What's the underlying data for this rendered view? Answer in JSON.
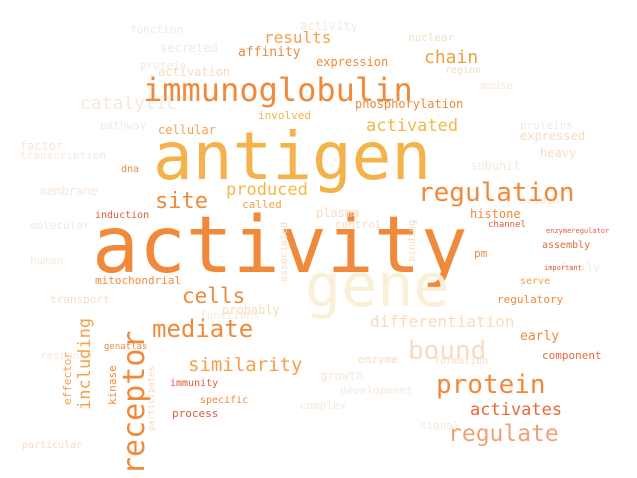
{
  "colors": {
    "background": "#ffffff",
    "orange_main": "#f5a04a",
    "orange_deep": "#f08a3a",
    "orange_bright": "#f4b24a",
    "gold": "#f2b847",
    "amber": "#e8a33f",
    "red_orange": "#e7693a",
    "red": "#e05a3a",
    "salmon": "#f0a07a",
    "pale_peach": "#f8dcc0",
    "pale_cream": "#faf0d8",
    "faint": "#f7e8dc"
  },
  "words": [
    {
      "text": "activity",
      "color": "orange_deep"
    },
    {
      "text": "antigen",
      "color": "orange_bright"
    },
    {
      "text": "gene",
      "color": "pale_cream"
    },
    {
      "text": "immunoglobulin",
      "color": "orange_deep"
    },
    {
      "text": "receptor",
      "color": "orange_deep"
    },
    {
      "text": "regulation",
      "color": "orange_deep"
    },
    {
      "text": "protein",
      "color": "orange_deep"
    },
    {
      "text": "bound",
      "color": "pale_peach"
    },
    {
      "text": "regulate",
      "color": "salmon"
    },
    {
      "text": "mediate",
      "color": "orange_deep"
    },
    {
      "text": "cells",
      "color": "orange_deep"
    },
    {
      "text": "site",
      "color": "orange_deep"
    },
    {
      "text": "produced",
      "color": "gold"
    },
    {
      "text": "similarity",
      "color": "orange_main"
    },
    {
      "text": "activates",
      "color": "red_orange"
    },
    {
      "text": "results",
      "color": "orange_main"
    },
    {
      "text": "chain",
      "color": "amber"
    },
    {
      "text": "activated",
      "color": "gold"
    },
    {
      "text": "differentiation",
      "color": "pale_peach"
    },
    {
      "text": "including",
      "color": "orange_main"
    },
    {
      "text": "affinity",
      "color": "orange_deep"
    },
    {
      "text": "expression",
      "color": "orange_deep"
    },
    {
      "text": "activation",
      "color": "pale_peach"
    },
    {
      "text": "phosphorylation",
      "color": "orange_deep"
    },
    {
      "text": "involved",
      "color": "gold"
    },
    {
      "text": "cellular",
      "color": "orange_main"
    },
    {
      "text": "histone",
      "color": "orange_deep"
    },
    {
      "text": "called",
      "color": "orange_main"
    },
    {
      "text": "plasma",
      "color": "pale_peach"
    },
    {
      "text": "control",
      "color": "pale_peach"
    },
    {
      "text": "induction",
      "color": "red"
    },
    {
      "text": "mitochondrial",
      "color": "orange_deep"
    },
    {
      "text": "probably",
      "color": "pale_peach"
    },
    {
      "text": "transport",
      "color": "pale_peach"
    },
    {
      "text": "regulatory",
      "color": "orange_deep"
    },
    {
      "text": "early",
      "color": "orange_deep"
    },
    {
      "text": "component",
      "color": "red_orange"
    },
    {
      "text": "serve",
      "color": "orange_main"
    },
    {
      "text": "assembly",
      "color": "red_orange"
    },
    {
      "text": "kinase",
      "color": "orange_deep"
    },
    {
      "text": "immunity",
      "color": "red"
    },
    {
      "text": "process",
      "color": "red"
    },
    {
      "text": "specific",
      "color": "orange_deep"
    },
    {
      "text": "effector",
      "color": "orange_main"
    },
    {
      "text": "enzyme",
      "color": "pale_peach"
    },
    {
      "text": "nuclear",
      "color": "pale_peach"
    },
    {
      "text": "region",
      "color": "pale_peach"
    },
    {
      "text": "expressed",
      "color": "pale_peach"
    },
    {
      "text": "heavy",
      "color": "pale_peach"
    },
    {
      "text": "dna",
      "color": "orange_deep"
    },
    {
      "text": "binding",
      "color": "pale_peach"
    },
    {
      "text": "pm",
      "color": "orange_deep"
    },
    {
      "text": "associated",
      "color": "pale_peach"
    },
    {
      "text": "channel",
      "color": "red"
    },
    {
      "text": "formation",
      "color": "pale_peach"
    },
    {
      "text": "participates",
      "color": "pale_peach"
    },
    {
      "text": "particular",
      "color": "pale_peach"
    },
    {
      "text": "important",
      "color": "red"
    },
    {
      "text": "enzymeregulator",
      "color": "red"
    },
    {
      "text": "genatlas",
      "color": "orange_deep"
    },
    {
      "text": "protein",
      "color": "faint"
    },
    {
      "text": "activity",
      "color": "faint"
    },
    {
      "text": "catalytic",
      "color": "faint"
    },
    {
      "text": "secreted",
      "color": "faint"
    },
    {
      "text": "function",
      "color": "faint"
    },
    {
      "text": "factor",
      "color": "faint"
    },
    {
      "text": "subunit",
      "color": "faint"
    },
    {
      "text": "molecular",
      "color": "faint"
    },
    {
      "text": "pathway",
      "color": "faint"
    },
    {
      "text": "proteins",
      "color": "faint"
    },
    {
      "text": "functions",
      "color": "faint"
    },
    {
      "text": "growth",
      "color": "faint"
    },
    {
      "text": "complex",
      "color": "faint"
    },
    {
      "text": "membrane",
      "color": "faint"
    },
    {
      "text": "domain",
      "color": "faint"
    },
    {
      "text": "human",
      "color": "faint"
    },
    {
      "text": "family",
      "color": "faint"
    },
    {
      "text": "response",
      "color": "faint"
    },
    {
      "text": "signal",
      "color": "faint"
    },
    {
      "text": "transcription",
      "color": "faint"
    },
    {
      "text": "development",
      "color": "faint"
    },
    {
      "text": "mouse",
      "color": "faint"
    }
  ]
}
